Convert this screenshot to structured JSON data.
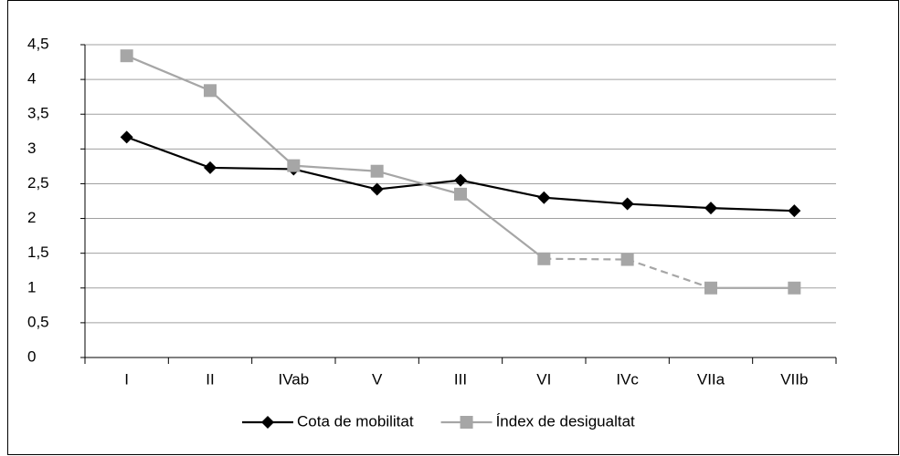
{
  "chart_data": {
    "type": "line",
    "categories": [
      "I",
      "II",
      "IVab",
      "V",
      "III",
      "VI",
      "IVc",
      "VIIa",
      "VIIb"
    ],
    "series": [
      {
        "name": "Cota de mobilitat",
        "color": "#000000",
        "marker": "diamond",
        "values": [
          3.17,
          2.73,
          2.71,
          2.42,
          2.55,
          2.3,
          2.21,
          2.15,
          2.11
        ]
      },
      {
        "name": "Índex de desigualtat",
        "color": "#a6a6a6",
        "marker": "square",
        "values": [
          4.34,
          3.84,
          2.76,
          2.68,
          2.35,
          1.42,
          1.41,
          1.0,
          1.0
        ],
        "dashed_segments": [
          [
            5,
            6
          ],
          [
            6,
            7
          ]
        ]
      }
    ],
    "ylim": [
      0,
      4.5
    ],
    "yticks": [
      0,
      {
        "value": 0.5,
        "label": "0,5"
      },
      1,
      {
        "value": 1.5,
        "label": "1,5"
      },
      2,
      {
        "value": 2.5,
        "label": "2,5"
      },
      3,
      {
        "value": 3.5,
        "label": "3,5"
      },
      4,
      {
        "value": 4.5,
        "label": "4,5"
      }
    ],
    "grid": true,
    "legend": "bottom"
  }
}
